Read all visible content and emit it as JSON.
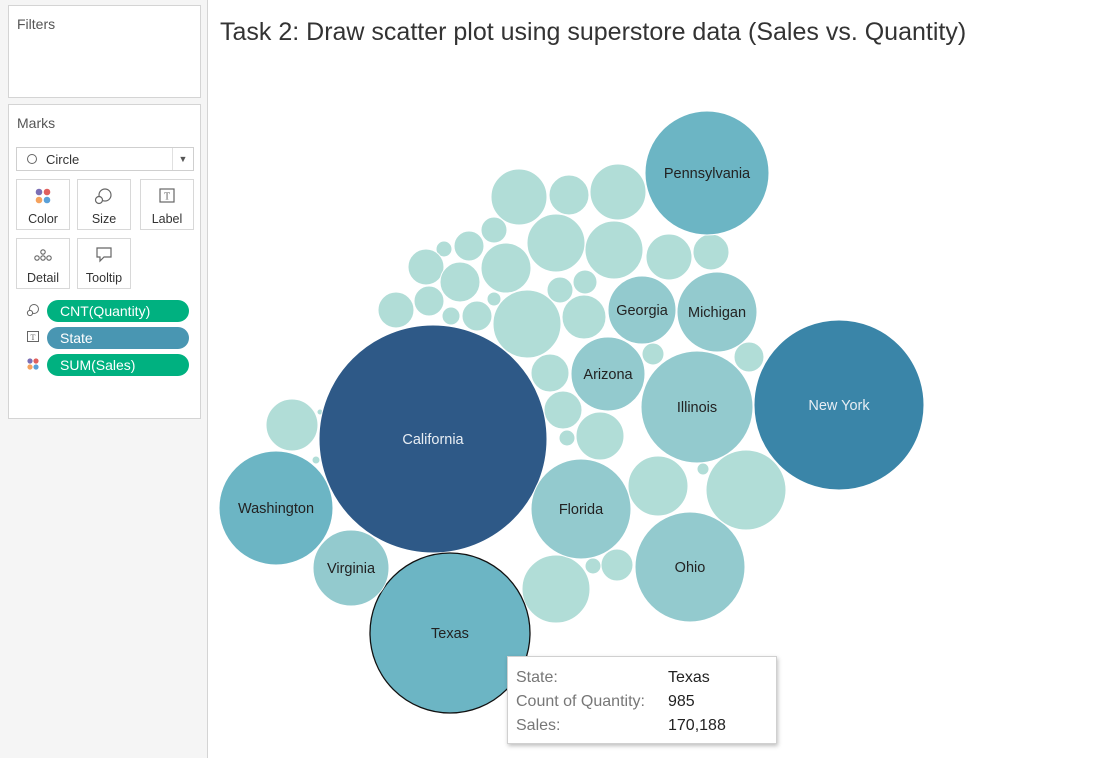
{
  "filters": {
    "title": "Filters"
  },
  "marks": {
    "title": "Marks",
    "mark_type": "Circle",
    "buttons": {
      "color": "Color",
      "size": "Size",
      "label": "Label",
      "detail": "Detail",
      "tooltip": "Tooltip"
    },
    "pills": [
      {
        "icon": "size-icon",
        "field": "CNT(Quantity)",
        "color": "#00b180"
      },
      {
        "icon": "label-icon",
        "field": "State",
        "color": "#4996b2"
      },
      {
        "icon": "color-icon",
        "field": "SUM(Sales)",
        "color": "#00b180"
      }
    ]
  },
  "worksheet": {
    "title": "Task 2: Draw scatter plot using superstore data (Sales vs. Quantity)"
  },
  "tooltip": {
    "state_label": "State:",
    "state_value": "Texas",
    "count_label": "Count of Quantity:",
    "count_value": "985",
    "sales_label": "Sales:",
    "sales_value": "170,188"
  },
  "chart_data": {
    "type": "packed_bubble",
    "size_field": "Count of Quantity",
    "color_field": "Sales",
    "label_field": "State",
    "colors": {
      "darkest": "#2e5987",
      "dark": "#3a85a8",
      "mid": "#6cb5c4",
      "light": "#93cace",
      "lightest": "#b1ddd7"
    },
    "labeled_bubbles": [
      {
        "state": "California",
        "color_level": "darkest"
      },
      {
        "state": "New York",
        "color_level": "dark"
      },
      {
        "state": "Texas",
        "color_level": "mid",
        "count_of_quantity": 985,
        "sales": 170188,
        "highlighted": true
      },
      {
        "state": "Washington",
        "color_level": "mid"
      },
      {
        "state": "Pennsylvania",
        "color_level": "mid"
      },
      {
        "state": "Illinois",
        "color_level": "light"
      },
      {
        "state": "Ohio",
        "color_level": "light"
      },
      {
        "state": "Florida",
        "color_level": "light"
      },
      {
        "state": "Michigan",
        "color_level": "light"
      },
      {
        "state": "Georgia",
        "color_level": "light"
      },
      {
        "state": "Virginia",
        "color_level": "light"
      },
      {
        "state": "Arizona",
        "color_level": "light"
      }
    ],
    "unlabeled_bubble_count": 37
  }
}
